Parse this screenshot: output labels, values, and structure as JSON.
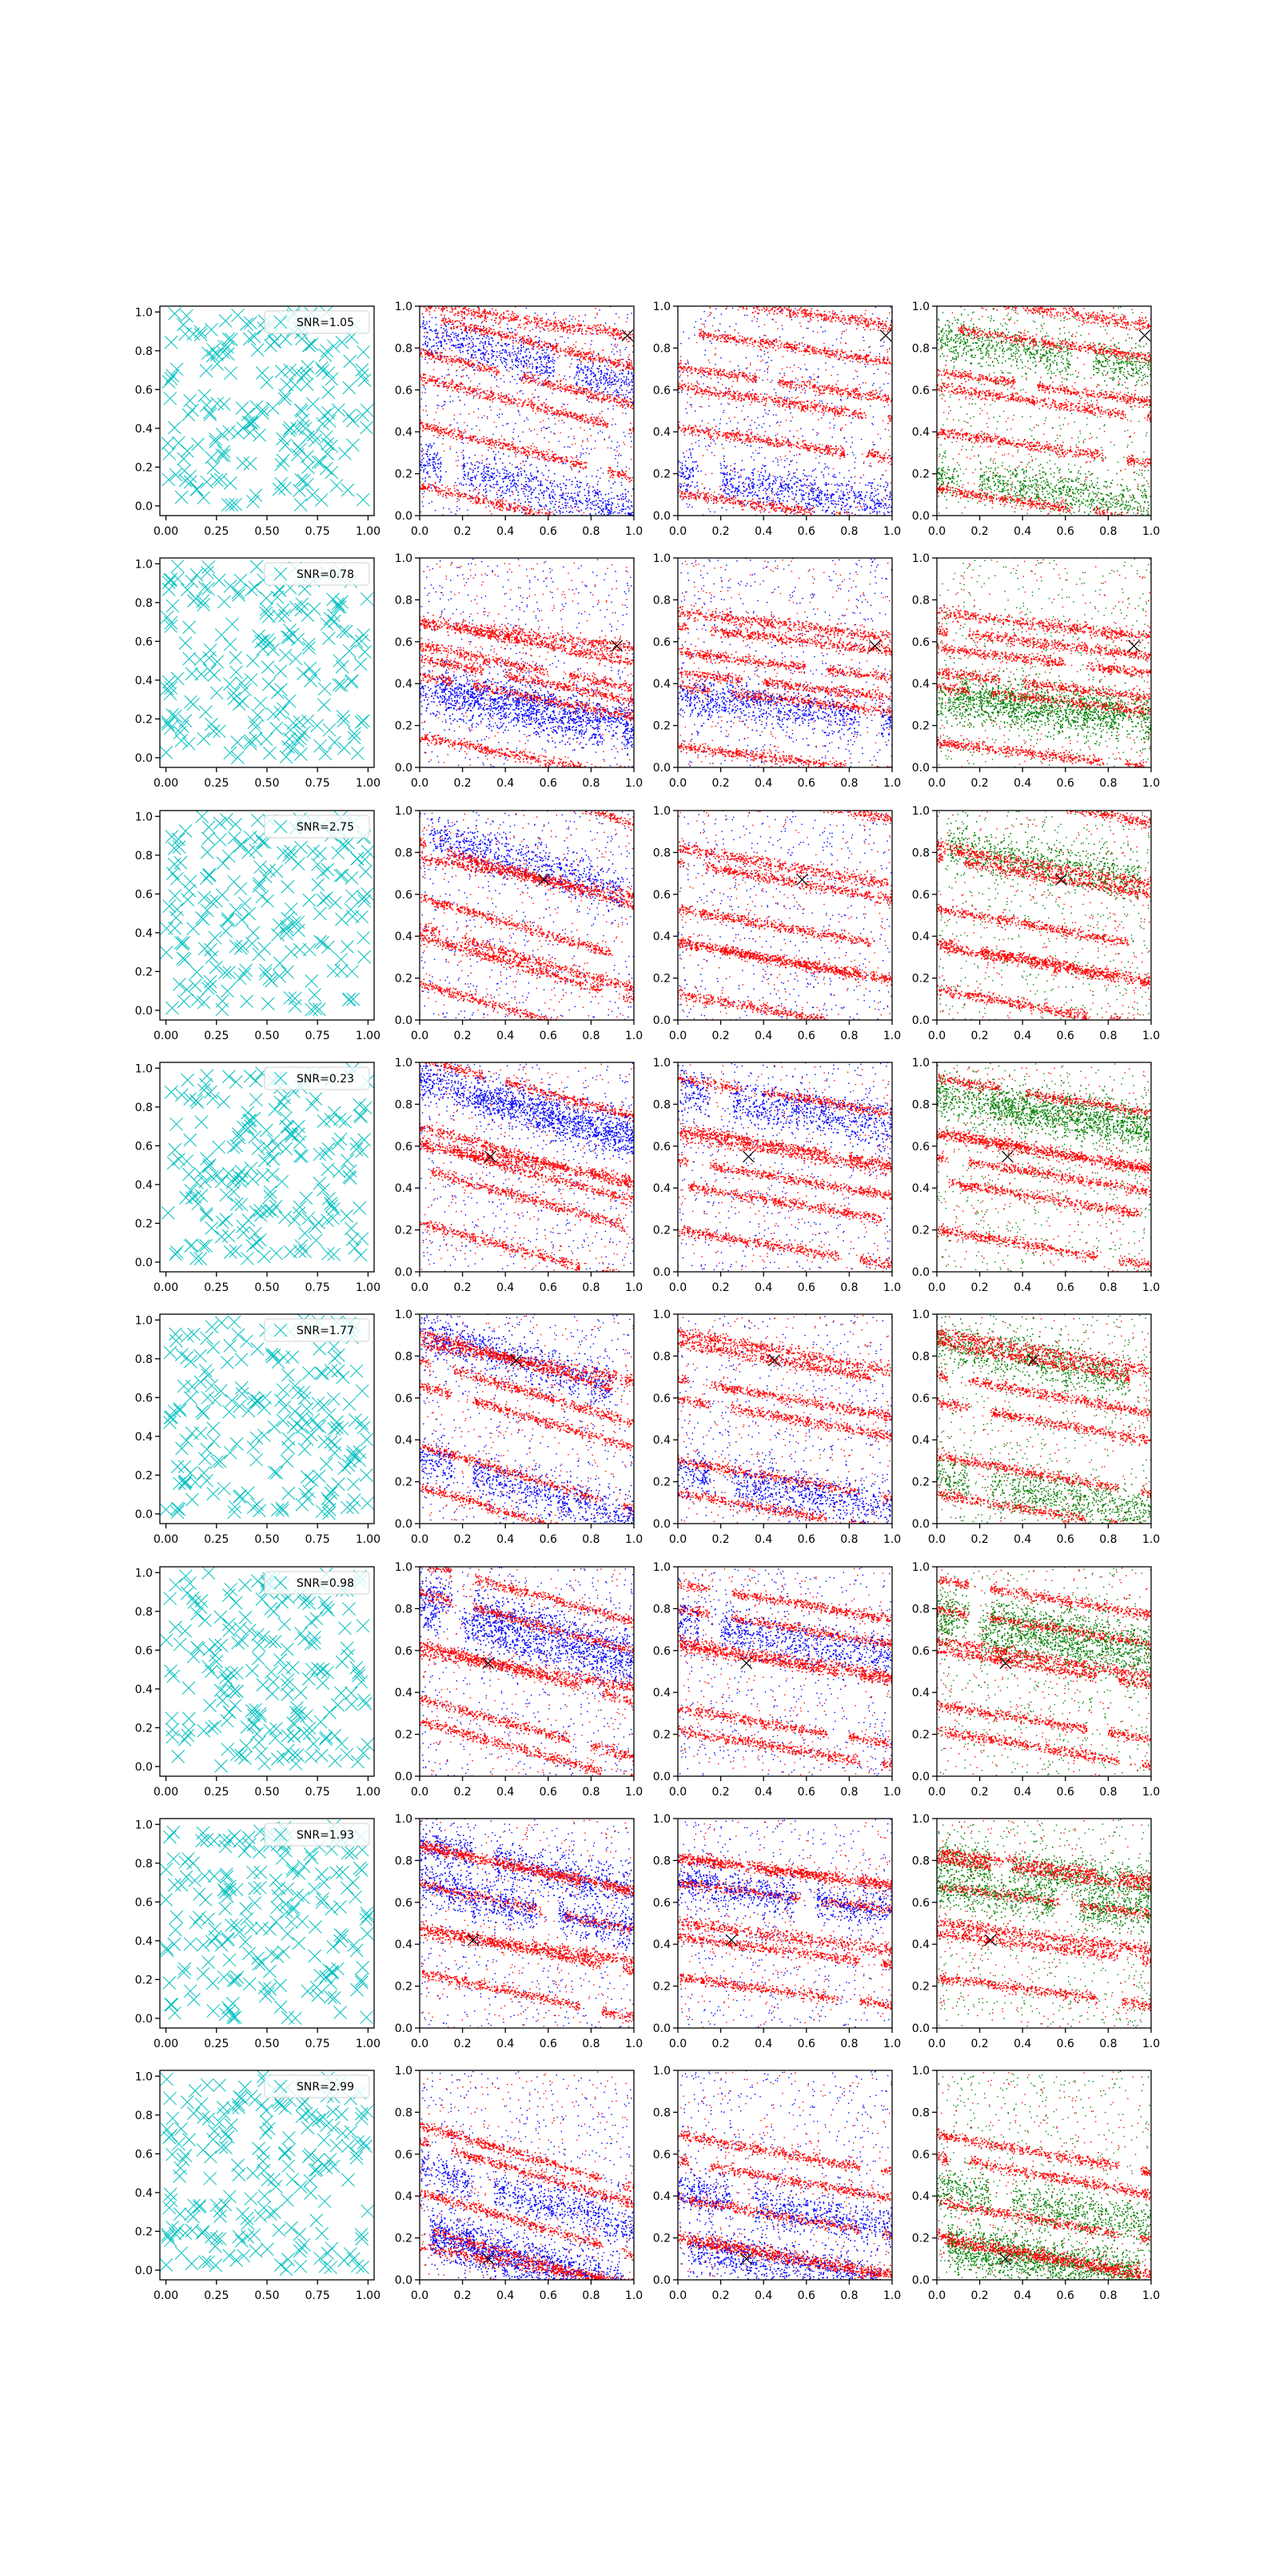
{
  "figure": {
    "background": "#ffffff",
    "colors": {
      "markers": "#00bfbf",
      "blue": "#0000ff",
      "red": "#ff0000",
      "green": "#008000",
      "target": "#000000"
    }
  },
  "chart_data": [
    {
      "type": "scatter",
      "rows": 8,
      "panels_per_row": 4,
      "panel_kinds": [
        "cyan-x markers with SNR legend",
        "blue/red point cloud with black x",
        "blue/red point cloud with black x",
        "green/red point cloud with black x"
      ],
      "axes": {
        "first_column": {
          "xlim": [
            -0.03,
            1.03
          ],
          "ylim": [
            -0.05,
            1.03
          ],
          "xticks": [
            "0.00",
            "0.25",
            "0.50",
            "0.75",
            "1.00"
          ],
          "yticks": [
            "0.0",
            "0.2",
            "0.4",
            "0.6",
            "0.8",
            "1.0"
          ]
        },
        "other_columns": {
          "xlim": [
            0,
            1
          ],
          "ylim": [
            0,
            1
          ],
          "xticks": [
            "0.0",
            "0.2",
            "0.4",
            "0.6",
            "0.8",
            "1.0"
          ],
          "yticks": [
            "0.0",
            "0.2",
            "0.4",
            "0.6",
            "0.8",
            "1.0"
          ]
        }
      },
      "legend_position": "top-right",
      "grid": false
    }
  ],
  "rows": [
    {
      "snr": "SNR=1.05",
      "target": [
        0.97,
        0.86
      ],
      "slope": -0.25,
      "bands": [
        [
          0.18,
          0.82,
          "b"
        ],
        [
          0.65,
          0.1,
          "b"
        ],
        [
          0.92,
          0.55,
          "r"
        ],
        [
          0.55,
          0.82,
          "r"
        ],
        [
          0.43,
          0.55,
          "r"
        ],
        [
          0.33,
          0.35,
          "r"
        ],
        [
          0.18,
          0.1,
          "r"
        ]
      ]
    },
    {
      "snr": "SNR=0.78",
      "target": [
        0.92,
        0.58
      ],
      "slope": -0.2,
      "bands": [
        [
          0.55,
          0.3,
          "b"
        ],
        [
          0.7,
          0.3,
          "r"
        ],
        [
          0.6,
          0.58,
          "r"
        ],
        [
          0.33,
          0.08,
          "r"
        ],
        [
          0.85,
          0.35,
          "r"
        ],
        [
          0.4,
          0.27,
          "b"
        ],
        [
          0.15,
          0.55,
          "r"
        ]
      ]
    },
    {
      "snr": "SNR=2.75",
      "target": [
        0.58,
        0.67
      ],
      "slope": -0.3,
      "bands": [
        [
          0.5,
          0.75,
          "b"
        ],
        [
          0.65,
          0.25,
          "r"
        ],
        [
          0.95,
          0.95,
          "r"
        ],
        [
          0.58,
          0.67,
          "r"
        ],
        [
          0.45,
          0.45,
          "r"
        ],
        [
          0.4,
          0.28,
          "r"
        ],
        [
          0.25,
          0.1,
          "r"
        ]
      ]
    },
    {
      "snr": "SNR=0.23",
      "target": [
        0.33,
        0.55
      ],
      "slope": -0.28,
      "bands": [
        [
          0.6,
          0.75,
          "b"
        ],
        [
          0.85,
          0.78,
          "r"
        ],
        [
          0.25,
          0.62,
          "r"
        ],
        [
          0.5,
          0.35,
          "r"
        ],
        [
          0.3,
          0.15,
          "r"
        ],
        [
          0.7,
          0.72,
          "b"
        ],
        [
          0.6,
          0.45,
          "r"
        ]
      ]
    },
    {
      "snr": "SNR=1.77",
      "target": [
        0.45,
        0.78
      ],
      "slope": -0.3,
      "bands": [
        [
          0.45,
          0.78,
          "b"
        ],
        [
          0.45,
          0.78,
          "r"
        ],
        [
          0.7,
          0.45,
          "r"
        ],
        [
          0.4,
          0.25,
          "r"
        ],
        [
          0.25,
          0.1,
          "r"
        ],
        [
          0.7,
          0.1,
          "b"
        ],
        [
          0.6,
          0.6,
          "r"
        ]
      ]
    },
    {
      "snr": "SNR=0.98",
      "target": [
        0.32,
        0.54
      ],
      "slope": -0.28,
      "bands": [
        [
          0.7,
          0.68,
          "b"
        ],
        [
          0.7,
          0.68,
          "r"
        ],
        [
          0.3,
          0.55,
          "r"
        ],
        [
          0.25,
          0.3,
          "r"
        ],
        [
          0.4,
          0.15,
          "r"
        ],
        [
          0.65,
          0.6,
          "b"
        ],
        [
          0.7,
          0.82,
          "r"
        ]
      ]
    },
    {
      "snr": "SNR=1.93",
      "target": [
        0.25,
        0.42
      ],
      "slope": -0.22,
      "bands": [
        [
          0.8,
          0.7,
          "b"
        ],
        [
          0.8,
          0.7,
          "r"
        ],
        [
          0.12,
          0.66,
          "r"
        ],
        [
          0.4,
          0.4,
          "r"
        ],
        [
          0.3,
          0.2,
          "r"
        ],
        [
          0.1,
          0.66,
          "b"
        ],
        [
          0.3,
          0.8,
          "r"
        ]
      ]
    },
    {
      "snr": "SNR=2.99",
      "target": [
        0.32,
        0.1
      ],
      "slope": -0.3,
      "bands": [
        [
          0.5,
          0.12,
          "b"
        ],
        [
          0.5,
          0.1,
          "r"
        ],
        [
          0.4,
          0.3,
          "r"
        ],
        [
          0.6,
          0.48,
          "r"
        ],
        [
          0.4,
          0.62,
          "r"
        ],
        [
          0.5,
          0.05,
          "b"
        ],
        [
          0.8,
          0.3,
          "b"
        ]
      ]
    }
  ]
}
